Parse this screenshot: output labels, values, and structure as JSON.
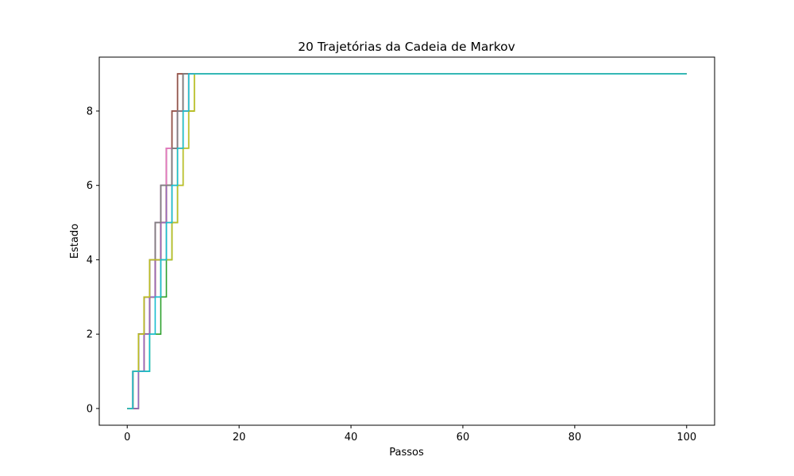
{
  "chart_data": {
    "type": "line",
    "title": "20 Trajetórias da Cadeia de Markov",
    "xlabel": "Passos",
    "ylabel": "Estado",
    "xlim": [
      -5,
      105
    ],
    "ylim": [
      -0.45,
      9.45
    ],
    "xticks": [
      0,
      20,
      40,
      60,
      80,
      100
    ],
    "yticks": [
      0,
      2,
      4,
      6,
      8
    ],
    "grid": false,
    "legend": "none",
    "step": "post",
    "x_end": 100,
    "series": [
      {
        "color": "#1f77b4",
        "states": [
          0,
          1,
          2,
          3,
          4,
          5,
          6,
          6,
          7,
          8,
          8,
          9
        ]
      },
      {
        "color": "#ff7f0e",
        "states": [
          0,
          0,
          1,
          2,
          3,
          4,
          5,
          6,
          7,
          7,
          8,
          9
        ]
      },
      {
        "color": "#2ca02c",
        "states": [
          0,
          0,
          1,
          1,
          2,
          2,
          3,
          4,
          5,
          6,
          7,
          8,
          9
        ]
      },
      {
        "color": "#d62728",
        "states": [
          0,
          1,
          2,
          3,
          4,
          5,
          6,
          7,
          8,
          9
        ]
      },
      {
        "color": "#9467bd",
        "states": [
          0,
          1,
          2,
          3,
          3,
          4,
          5,
          6,
          7,
          8,
          9
        ]
      },
      {
        "color": "#8c564b",
        "states": [
          0,
          0,
          1,
          2,
          3,
          4,
          5,
          6,
          7,
          8,
          9
        ]
      },
      {
        "color": "#e377c2",
        "states": [
          0,
          1,
          2,
          3,
          4,
          5,
          6,
          7,
          7,
          8,
          9
        ]
      },
      {
        "color": "#7f7f7f",
        "states": [
          0,
          1,
          1,
          2,
          3,
          3,
          4,
          5,
          6,
          7,
          8,
          9
        ]
      },
      {
        "color": "#bcbd22",
        "states": [
          0,
          1,
          2,
          3,
          4,
          4,
          5,
          6,
          6,
          7,
          8,
          8,
          9
        ]
      },
      {
        "color": "#17becf",
        "states": [
          0,
          1,
          2,
          3,
          4,
          5,
          6,
          6,
          7,
          8,
          9
        ]
      },
      {
        "color": "#1f77b4",
        "states": [
          0,
          1,
          2,
          3,
          4,
          5,
          5,
          6,
          7,
          8,
          9
        ]
      },
      {
        "color": "#ff7f0e",
        "states": [
          0,
          1,
          2,
          3,
          3,
          4,
          5,
          6,
          7,
          8,
          9
        ]
      },
      {
        "color": "#2ca02c",
        "states": [
          0,
          1,
          2,
          2,
          3,
          4,
          5,
          6,
          7,
          8,
          9
        ]
      },
      {
        "color": "#d62728",
        "states": [
          0,
          1,
          1,
          2,
          3,
          4,
          5,
          6,
          7,
          8,
          9
        ]
      },
      {
        "color": "#9467bd",
        "states": [
          0,
          0,
          1,
          2,
          3,
          4,
          5,
          6,
          7,
          8,
          9
        ]
      },
      {
        "color": "#8c564b",
        "states": [
          0,
          1,
          2,
          3,
          4,
          5,
          6,
          7,
          8,
          9
        ]
      },
      {
        "color": "#e377c2",
        "states": [
          0,
          1,
          2,
          3,
          4,
          5,
          6,
          7,
          7,
          8,
          8,
          9
        ]
      },
      {
        "color": "#7f7f7f",
        "states": [
          0,
          1,
          2,
          3,
          4,
          5,
          6,
          6,
          7,
          8,
          9
        ]
      },
      {
        "color": "#bcbd22",
        "states": [
          0,
          1,
          2,
          3,
          4,
          4,
          4,
          4,
          5,
          6,
          7,
          8,
          9
        ]
      },
      {
        "color": "#17becf",
        "states": [
          0,
          1,
          1,
          1,
          2,
          3,
          4,
          5,
          6,
          7,
          8,
          9
        ]
      }
    ]
  }
}
